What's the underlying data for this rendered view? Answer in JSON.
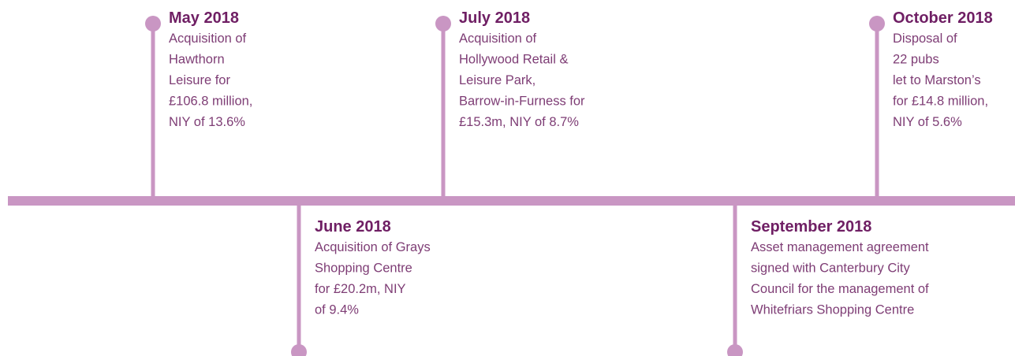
{
  "timeline": {
    "events": [
      {
        "date": "May 2018",
        "lines": [
          "Acquisition of",
          "Hawthorn",
          "Leisure for",
          "£106.8 million,",
          "NIY of 13.6%"
        ]
      },
      {
        "date": "June 2018",
        "lines": [
          "Acquisition of Grays",
          "Shopping Centre",
          "for £20.2m, NIY",
          "of 9.4%"
        ]
      },
      {
        "date": "July 2018",
        "lines": [
          "Acquisition of",
          "Hollywood Retail &",
          "Leisure Park,",
          "Barrow-in-Furness for",
          "£15.3m, NIY of 8.7%"
        ]
      },
      {
        "date": "September 2018",
        "lines": [
          "Asset management agreement",
          "signed with Canterbury City",
          "Council for the management of",
          "Whitefriars Shopping Centre"
        ]
      },
      {
        "date": "October 2018",
        "lines": [
          "Disposal of",
          "22 pubs",
          "let to Marston’s",
          "for £14.8 million,",
          "NIY of 5.6%"
        ]
      }
    ]
  }
}
